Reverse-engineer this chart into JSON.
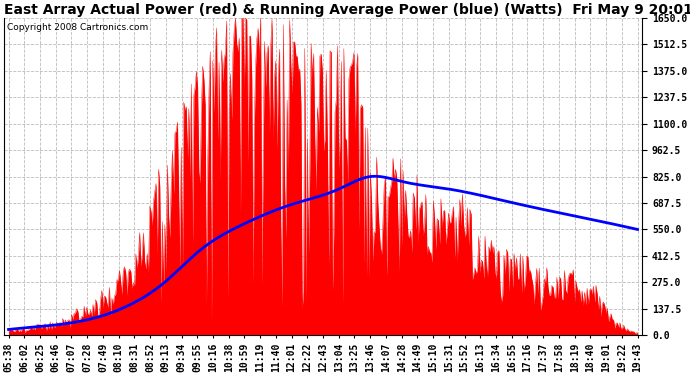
{
  "title": "East Array Actual Power (red) & Running Average Power (blue) (Watts)  Fri May 9 20:01",
  "copyright": "Copyright 2008 Cartronics.com",
  "ylim": [
    0,
    1650
  ],
  "yticks": [
    0.0,
    137.5,
    275.0,
    412.5,
    550.0,
    687.5,
    825.0,
    962.5,
    1100.0,
    1237.5,
    1375.0,
    1512.5,
    1650.0
  ],
  "actual_color": "#FF0000",
  "avg_color": "#0000FF",
  "bg_color": "#FFFFFF",
  "grid_color": "#BBBBBB",
  "title_fontsize": 10,
  "tick_fontsize": 7,
  "x_labels": [
    "05:38",
    "06:02",
    "06:25",
    "06:46",
    "07:07",
    "07:28",
    "07:49",
    "08:10",
    "08:31",
    "08:52",
    "09:13",
    "09:34",
    "09:55",
    "10:16",
    "10:38",
    "10:59",
    "11:19",
    "11:40",
    "12:01",
    "12:22",
    "12:43",
    "13:04",
    "13:25",
    "13:46",
    "14:07",
    "14:28",
    "14:49",
    "15:10",
    "15:31",
    "15:52",
    "16:13",
    "16:34",
    "16:55",
    "17:16",
    "17:37",
    "17:58",
    "18:19",
    "18:40",
    "19:01",
    "19:22",
    "19:43"
  ],
  "n_labels": 41
}
